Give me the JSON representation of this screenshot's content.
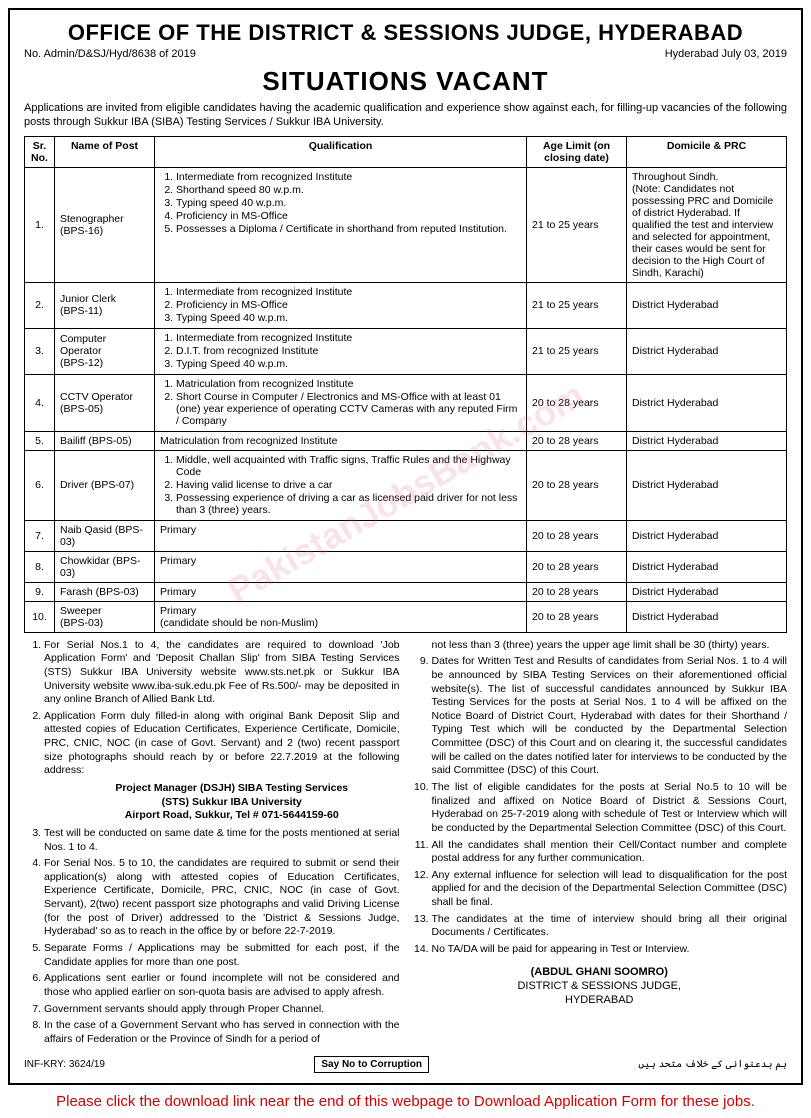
{
  "header": {
    "office": "OFFICE OF THE DISTRICT & SESSIONS JUDGE, HYDERABAD",
    "ref": "No. Admin/D&SJ/Hyd/8638 of 2019",
    "date": "Hyderabad July 03, 2019",
    "title": "SITUATIONS VACANT",
    "intro": "Applications are invited from eligible candidates having the academic qualification and experience show against each, for filling-up vacancies of the following posts through Sukkur IBA (SIBA) Testing Services / Sukkur IBA University."
  },
  "table": {
    "columns": [
      "Sr. No.",
      "Name of Post",
      "Qualification",
      "Age Limit (on closing date)",
      "Domicile & PRC"
    ],
    "rows": [
      {
        "sr": "1.",
        "name": "Stenographer\n(BPS-16)",
        "qual": [
          "Intermediate from recognized Institute",
          "Shorthand speed 80 w.p.m.",
          "Typing speed 40 w.p.m.",
          "Proficiency in MS-Office",
          "Possesses a Diploma / Certificate in shorthand from reputed Institution."
        ],
        "age": "21 to 25 years",
        "dom": "Throughout Sindh.\n(Note: Candidates not possessing PRC and Domicile of district Hyderabad. If qualified the test and interview and selected for appointment, their cases would be sent for decision to the High Court of Sindh, Karachi)"
      },
      {
        "sr": "2.",
        "name": "Junior Clerk\n(BPS-11)",
        "qual": [
          "Intermediate from recognized Institute",
          "Proficiency in MS-Office",
          "Typing Speed 40 w.p.m."
        ],
        "age": "21 to 25 years",
        "dom": "District Hyderabad"
      },
      {
        "sr": "3.",
        "name": "Computer Operator\n(BPS-12)",
        "qual": [
          "Intermediate from recognized Institute",
          "D.I.T. from recognized Institute",
          "Typing Speed 40 w.p.m."
        ],
        "age": "21 to 25 years",
        "dom": "District Hyderabad"
      },
      {
        "sr": "4.",
        "name": "CCTV Operator\n(BPS-05)",
        "qual": [
          "Matriculation from recognized Institute",
          "Short Course in Computer / Electronics and MS-Office with at least 01 (one) year experience of operating CCTV Cameras with any reputed Firm / Company"
        ],
        "age": "20 to 28 years",
        "dom": "District Hyderabad"
      },
      {
        "sr": "5.",
        "name": "Bailiff (BPS-05)",
        "qual_text": "Matriculation from recognized Institute",
        "age": "20 to 28 years",
        "dom": "District Hyderabad"
      },
      {
        "sr": "6.",
        "name": "Driver (BPS-07)",
        "qual": [
          "Middle, well acquainted with Traffic signs, Traffic Rules and the Highway Code",
          "Having valid license to drive a car",
          "Possessing experience of driving a car as licensed paid driver for not less than 3 (three) years."
        ],
        "age": "20 to 28 years",
        "dom": "District Hyderabad"
      },
      {
        "sr": "7.",
        "name": "Naib Qasid (BPS-03)",
        "qual_text": "Primary",
        "age": "20 to 28 years",
        "dom": "District Hyderabad"
      },
      {
        "sr": "8.",
        "name": "Chowkidar (BPS-03)",
        "qual_text": "Primary",
        "age": "20 to 28 years",
        "dom": "District Hyderabad"
      },
      {
        "sr": "9.",
        "name": "Farash (BPS-03)",
        "qual_text": "Primary",
        "age": "20 to 28 years",
        "dom": "District Hyderabad"
      },
      {
        "sr": "10.",
        "name": "Sweeper\n(BPS-03)",
        "qual_text": "Primary\n(candidate should be non-Muslim)",
        "age": "20 to 28 years",
        "dom": "District Hyderabad"
      }
    ]
  },
  "instructions": {
    "left": [
      "For Serial Nos.1 to 4, the candidates are required to download 'Job Application Form' and 'Deposit Challan Slip' from SIBA Testing Services (STS) Sukkur IBA University website www.sts.net.pk or Sukkur IBA University website www.iba-suk.edu.pk Fee of Rs.500/- may be deposited in any online Branch of Allied Bank Ltd.",
      "Application Form duly filled-in along with original Bank Deposit Slip and attested copies of Education Certificates, Experience Certificate, Domicile, PRC, CNIC, NOC (in case of Govt. Servant) and 2 (two) recent passport size photographs should reach by or before 22.7.2019 at the following address:",
      "Test will be conducted on same date & time for the posts mentioned at serial Nos. 1 to 4.",
      "For Serial Nos. 5 to 10, the candidates are required to submit or send their application(s) along with attested copies of Education Certificates, Experience Certificate, Domicile, PRC, CNIC, NOC (in case of Govt. Servant), 2(two) recent passport size photographs and valid Driving License (for the post of Driver) addressed to the 'District & Sessions Judge, Hyderabad' so as to reach in the office by or before 22-7-2019.",
      "Separate Forms / Applications may be submitted for each post, if the Candidate applies for more than one post.",
      "Applications sent earlier or found incomplete will not be considered and those who applied earlier on son-quota basis are advised to apply afresh.",
      "Government servants should apply through Proper Channel.",
      "In the case of a Government Servant who has served in connection with the affairs of Federation or the Province of Sindh for a period of"
    ],
    "address": {
      "l1": "Project Manager (DSJH) SIBA Testing Services",
      "l2": "(STS) Sukkur IBA University",
      "l3": "Airport Road, Sukkur, Tel # 071-5644159-60"
    },
    "right_start_text": "not less than 3 (three) years the upper age limit shall be 30 (thirty) years.",
    "right": [
      "Dates for Written Test and Results of candidates from Serial Nos. 1 to 4 will be announced by SIBA Testing Services on their aforementioned official website(s). The list of successful candidates announced by Sukkur IBA Testing Services for the posts at Serial Nos. 1 to 4 will be affixed on the Notice Board of District Court, Hyderabad with dates for their Shorthand / Typing Test which will be conducted by the Departmental Selection Committee (DSC) of this Court and on clearing it, the successful candidates will be called on the dates notified later for interviews to be conducted by the said Committee (DSC) of this Court.",
      "The list of eligible candidates for the posts at Serial No.5 to 10 will be finalized and affixed on Notice Board of District & Sessions Court, Hyderabad on 25-7-2019 along with schedule of Test or Interview which will be conducted by the Departmental Selection Committee (DSC) of this Court.",
      "All the candidates shall mention their Cell/Contact number and complete postal address for any further communication.",
      "Any external influence for selection will lead to disqualification for the post applied for and the decision of the Departmental Selection Committee (DSC) shall be final.",
      "The candidates at the time of interview should bring all their original Documents / Certificates.",
      "No TA/DA will be paid for appearing in Test or Interview."
    ]
  },
  "signature": {
    "name": "(ABDUL GHANI SOOMRO)",
    "title": "DISTRICT & SESSIONS JUDGE,",
    "place": "HYDERABAD"
  },
  "footer": {
    "inf": "INF-KRY: 3624/19",
    "corruption": "Say No to Corruption",
    "urdu": "ہم بدعنوانی کے خلاف متحد ہیں"
  },
  "watermark": "PakistanJobsBank.com",
  "bottom_note": "Please click the download link near the end of this webpage to Download Application Form for these jobs."
}
